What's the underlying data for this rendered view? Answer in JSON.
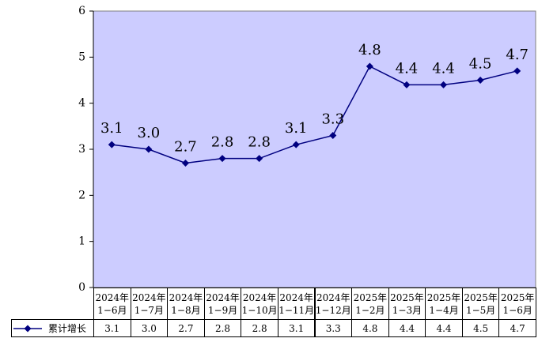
{
  "chart_data": {
    "type": "line",
    "categories": [
      "2024年\n1−6月",
      "2024年\n1−7月",
      "2024年\n1−8月",
      "2024年\n1−9月",
      "2024年\n1−10月",
      "2024年\n1−11月",
      "2024年\n1−12月",
      "2025年\n1−2月",
      "2025年\n1−3月",
      "2025年\n1−4月",
      "2025年\n1−5月",
      "2025年\n1−6月"
    ],
    "series": [
      {
        "name": "累计增长",
        "color": "#000080",
        "values": [
          3.1,
          3.0,
          2.7,
          2.8,
          2.8,
          3.1,
          3.3,
          4.8,
          4.4,
          4.4,
          4.5,
          4.7
        ],
        "value_labels": [
          "3.1",
          "3.0",
          "2.7",
          "2.8",
          "2.8",
          "3.1",
          "3.3",
          "4.8",
          "4.4",
          "4.4",
          "4.5",
          "4.7"
        ]
      }
    ],
    "ylim": [
      0,
      6
    ],
    "yticks": [
      0,
      1,
      2,
      3,
      4,
      5,
      6
    ],
    "plot_color": "#ccccff"
  }
}
